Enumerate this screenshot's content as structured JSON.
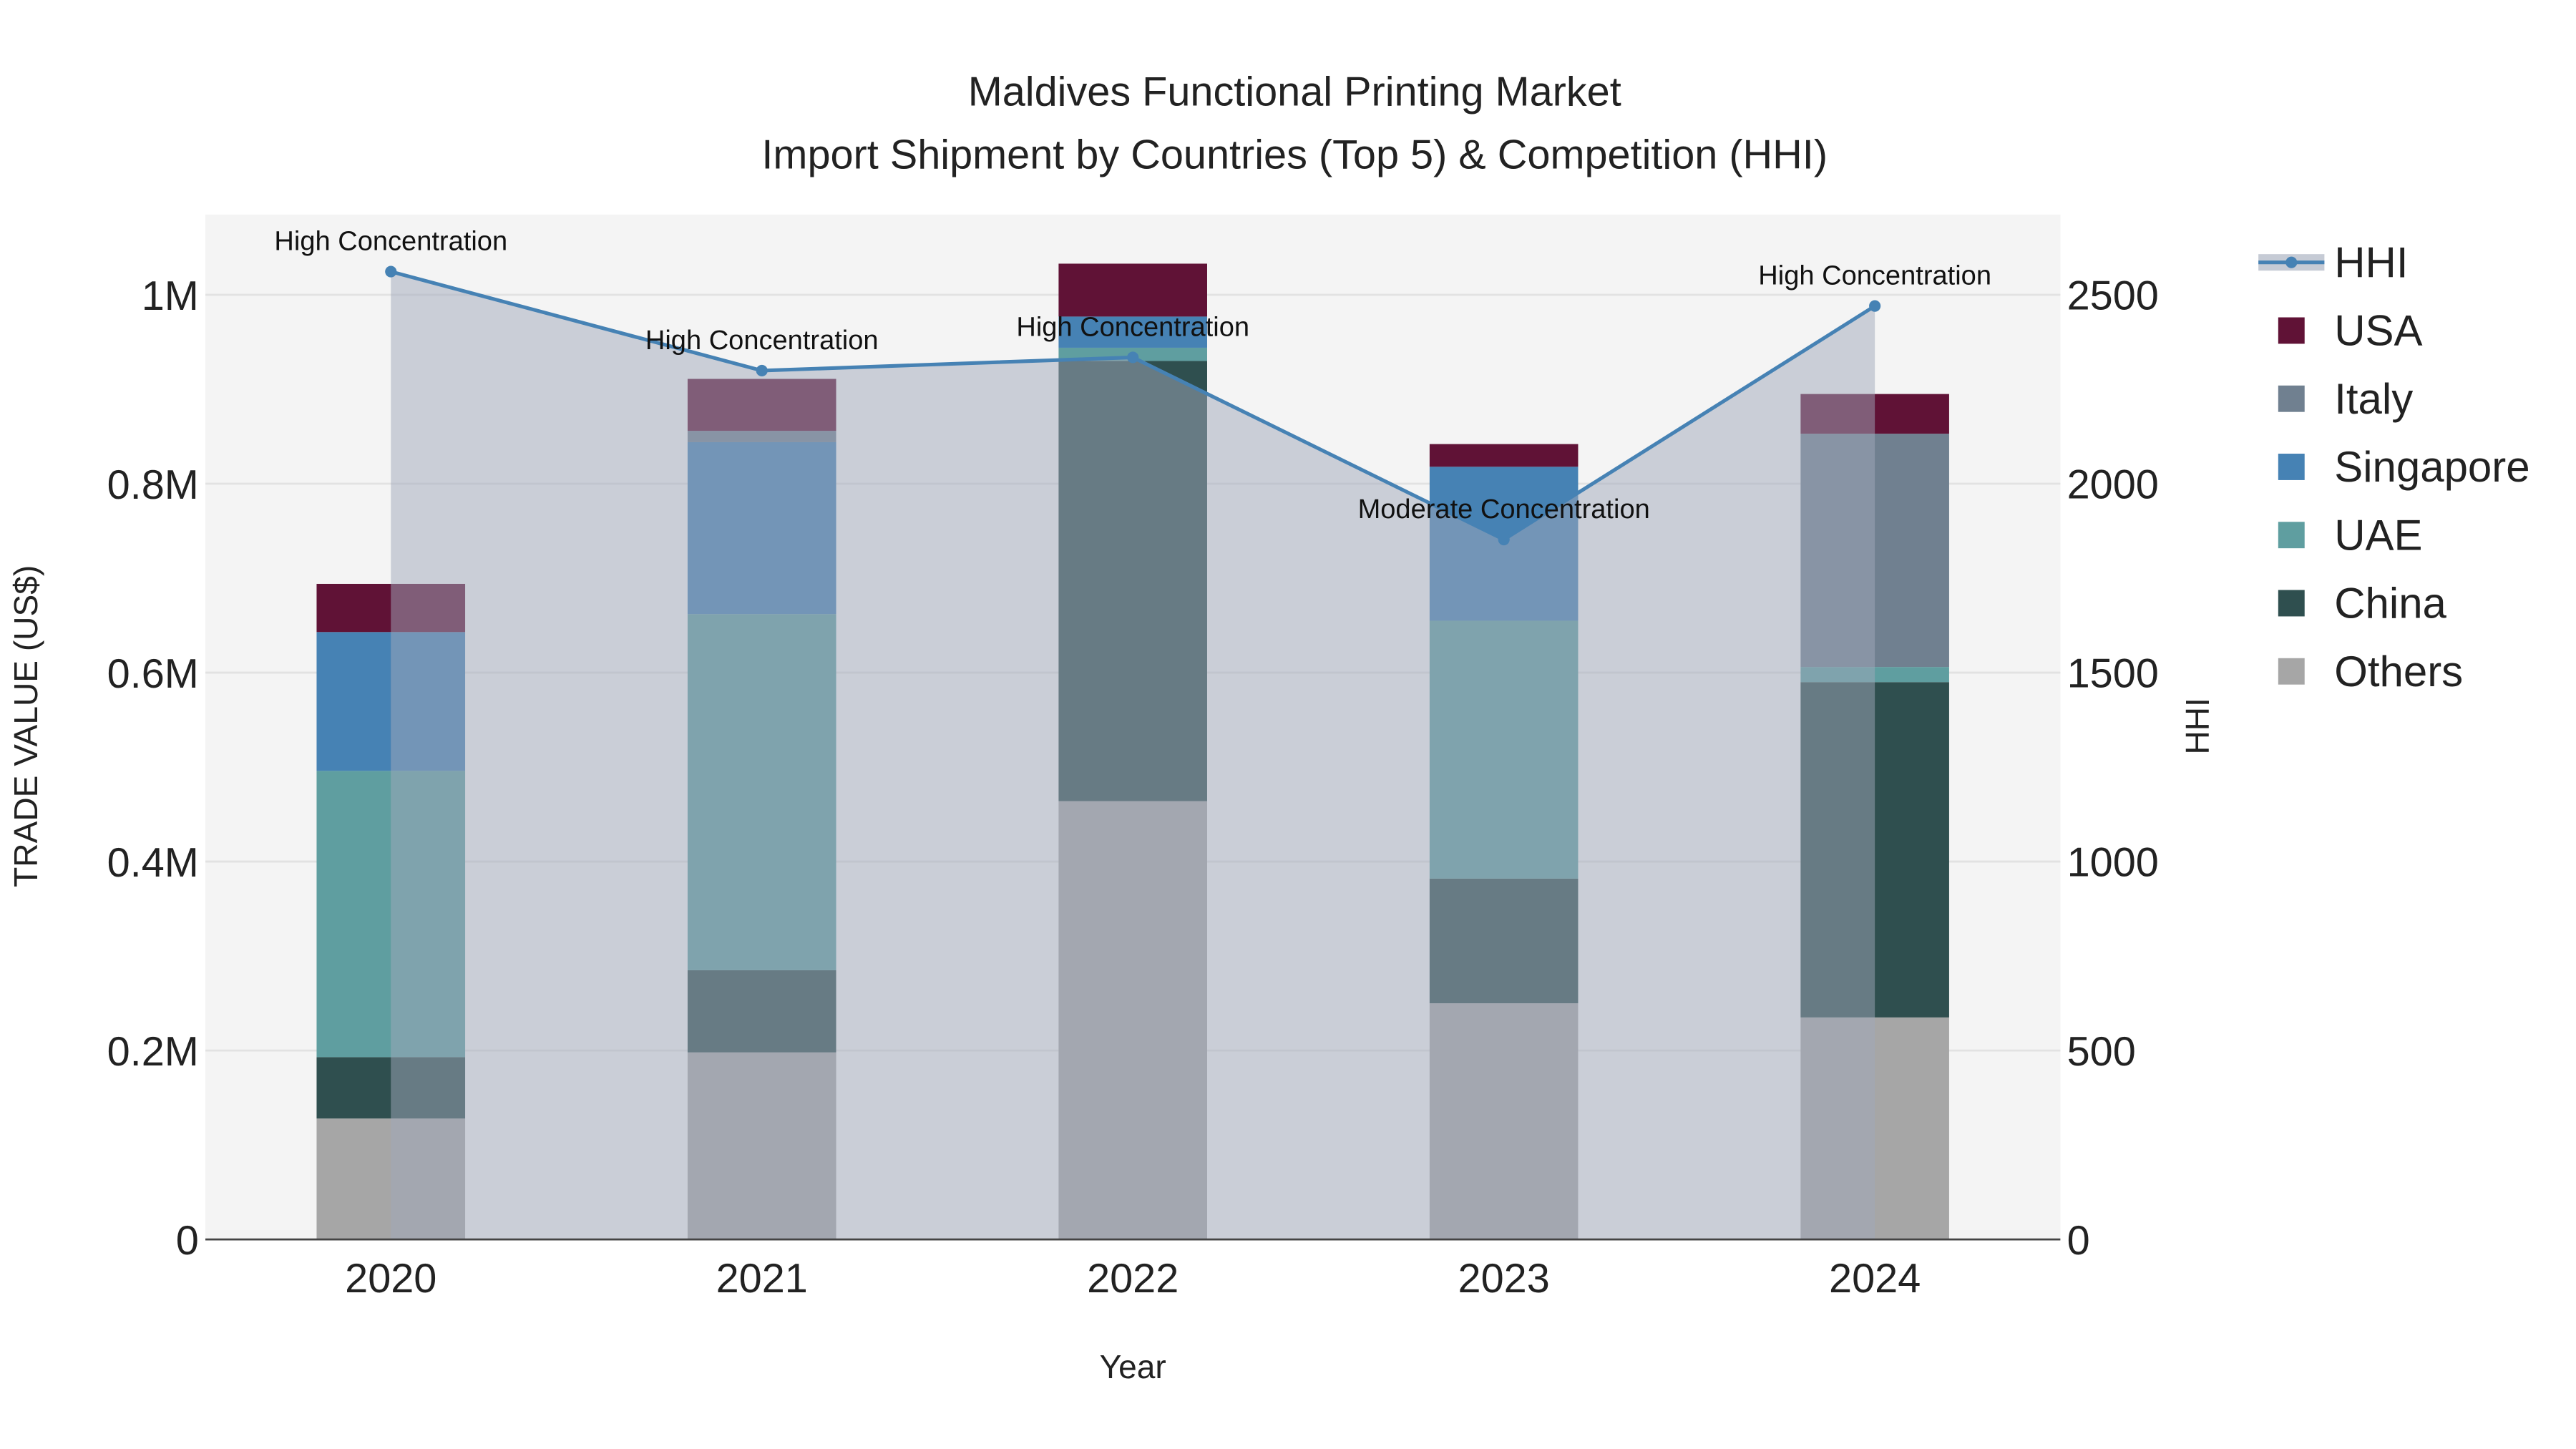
{
  "chart_data": {
    "type": "bar",
    "title": "Maldives Functional Printing Market",
    "subtitle": "Import Shipment by Countries (Top 5) & Competition (HHI)",
    "xlabel": "Year",
    "ylabel": "TRADE VALUE (US$)",
    "y2label": "HHI",
    "categories": [
      "2020",
      "2021",
      "2022",
      "2023",
      "2024"
    ],
    "ylim": [
      0,
      1085000
    ],
    "y2lim": [
      0,
      2712
    ],
    "yticks": [
      0,
      200000,
      400000,
      600000,
      800000,
      1000000
    ],
    "ytick_labels": [
      "0",
      "0.2M",
      "0.4M",
      "0.6M",
      "0.8M",
      "1M"
    ],
    "y2ticks": [
      0,
      500,
      1000,
      1500,
      2000,
      2500
    ],
    "y2tick_labels": [
      "0",
      "500",
      "1000",
      "1500",
      "2000",
      "2500"
    ],
    "grid": true,
    "legend_position": "right",
    "series": [
      {
        "name": "Others",
        "color": "#a6a6a6",
        "values": [
          128000,
          198000,
          464000,
          250000,
          235000
        ]
      },
      {
        "name": "China",
        "color": "#2f4f4f",
        "values": [
          65000,
          87000,
          466000,
          132000,
          355000
        ]
      },
      {
        "name": "UAE",
        "color": "#5f9ea0",
        "values": [
          303000,
          377000,
          14000,
          273000,
          16000
        ]
      },
      {
        "name": "Singapore",
        "color": "#4682b4",
        "values": [
          147000,
          182000,
          33000,
          163000,
          0
        ]
      },
      {
        "name": "Italy",
        "color": "#708090",
        "values": [
          0,
          12000,
          0,
          0,
          247000
        ]
      },
      {
        "name": "USA",
        "color": "#601236",
        "values": [
          51000,
          55000,
          56000,
          24000,
          42000
        ]
      }
    ],
    "hhi": {
      "name": "HHI",
      "color": "#4682b4",
      "values": [
        2561,
        2299,
        2334,
        1852,
        2470
      ],
      "labels": [
        "High Concentration",
        "High Concentration",
        "High Concentration",
        "Moderate Concentration",
        "High Concentration"
      ]
    },
    "legend_order": [
      "HHI",
      "USA",
      "Italy",
      "Singapore",
      "UAE",
      "China",
      "Others"
    ]
  }
}
